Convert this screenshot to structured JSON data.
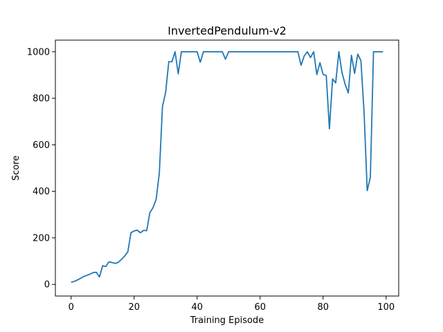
{
  "chart_data": {
    "type": "line",
    "title": "InvertedPendulum-v2",
    "xlabel": "Training Episode",
    "ylabel": "Score",
    "xlim": [
      -5,
      104
    ],
    "ylim": [
      -50,
      1050
    ],
    "xticks": [
      0,
      20,
      40,
      60,
      80,
      100
    ],
    "yticks": [
      0,
      200,
      400,
      600,
      800,
      1000
    ],
    "grid": false,
    "series": [
      {
        "color": "#1f77b4",
        "x": [
          0,
          1,
          2,
          3,
          4,
          5,
          6,
          7,
          8,
          9,
          10,
          11,
          12,
          13,
          14,
          15,
          16,
          17,
          18,
          19,
          20,
          21,
          22,
          23,
          24,
          25,
          26,
          27,
          28,
          29,
          30,
          31,
          32,
          33,
          34,
          35,
          36,
          37,
          38,
          39,
          40,
          41,
          42,
          43,
          44,
          45,
          46,
          47,
          48,
          49,
          50,
          51,
          52,
          53,
          54,
          55,
          56,
          57,
          58,
          59,
          60,
          61,
          62,
          63,
          64,
          65,
          66,
          67,
          68,
          69,
          70,
          71,
          72,
          73,
          74,
          75,
          76,
          77,
          78,
          79,
          80,
          81,
          82,
          83,
          84,
          85,
          86,
          87,
          88,
          89,
          90,
          91,
          92,
          93,
          94,
          95,
          96,
          97,
          98,
          99
        ],
        "y": [
          9,
          13,
          19,
          26,
          34,
          39,
          44,
          51,
          52,
          32,
          80,
          77,
          97,
          94,
          90,
          95,
          108,
          122,
          140,
          222,
          230,
          233,
          222,
          232,
          231,
          308,
          330,
          366,
          478,
          765,
          825,
          957,
          957,
          1000,
          905,
          1000,
          1000,
          1000,
          1000,
          1000,
          1000,
          955,
          1000,
          1000,
          1000,
          1000,
          1000,
          1000,
          1000,
          968,
          1000,
          1000,
          1000,
          1000,
          1000,
          1000,
          1000,
          1000,
          1000,
          1000,
          1000,
          1000,
          1000,
          1000,
          1000,
          1000,
          1000,
          1000,
          1000,
          1000,
          1000,
          1000,
          1000,
          942,
          982,
          1000,
          975,
          1000,
          902,
          953,
          903,
          897,
          669,
          883,
          866,
          1000,
          910,
          860,
          823,
          985,
          907,
          990,
          962,
          742,
          403,
          460,
          1000,
          1000,
          1000,
          1000
        ]
      }
    ]
  }
}
